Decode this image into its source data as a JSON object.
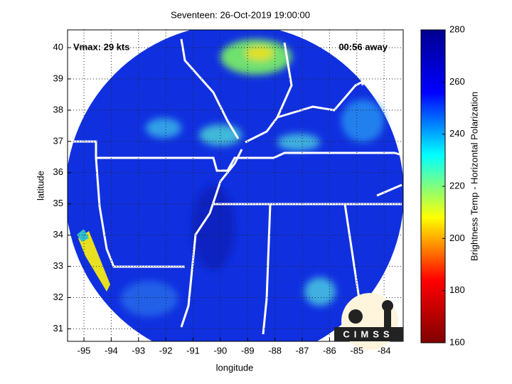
{
  "chart_data": {
    "type": "map",
    "title": "Seventeen: 26-Oct-2019 19:00:00",
    "annotations": [
      "Vmax: 29 kts",
      "00:56 away"
    ],
    "xlabel": "longitude",
    "ylabel": "latitude",
    "xlim": [
      -95.6,
      -83.3
    ],
    "ylim": [
      30.6,
      40.57
    ],
    "xticks": [
      -95,
      -94,
      -93,
      -92,
      -91,
      -90,
      -89,
      -88,
      -87,
      -86,
      -85,
      -84
    ],
    "yticks": [
      31,
      32,
      33,
      34,
      35,
      36,
      37,
      38,
      39,
      40
    ],
    "grid": true,
    "colorbar": {
      "label": "Brightness Temp - Horizontal Polarization",
      "lim": [
        160,
        280
      ],
      "ticks": [
        160,
        180,
        200,
        220,
        240,
        260,
        280
      ],
      "colormap": [
        "#00008f",
        "#0000ff",
        "#00ffff",
        "#ffff00",
        "#ff0000",
        "#800000"
      ]
    },
    "logo_text": "CIMSS"
  }
}
